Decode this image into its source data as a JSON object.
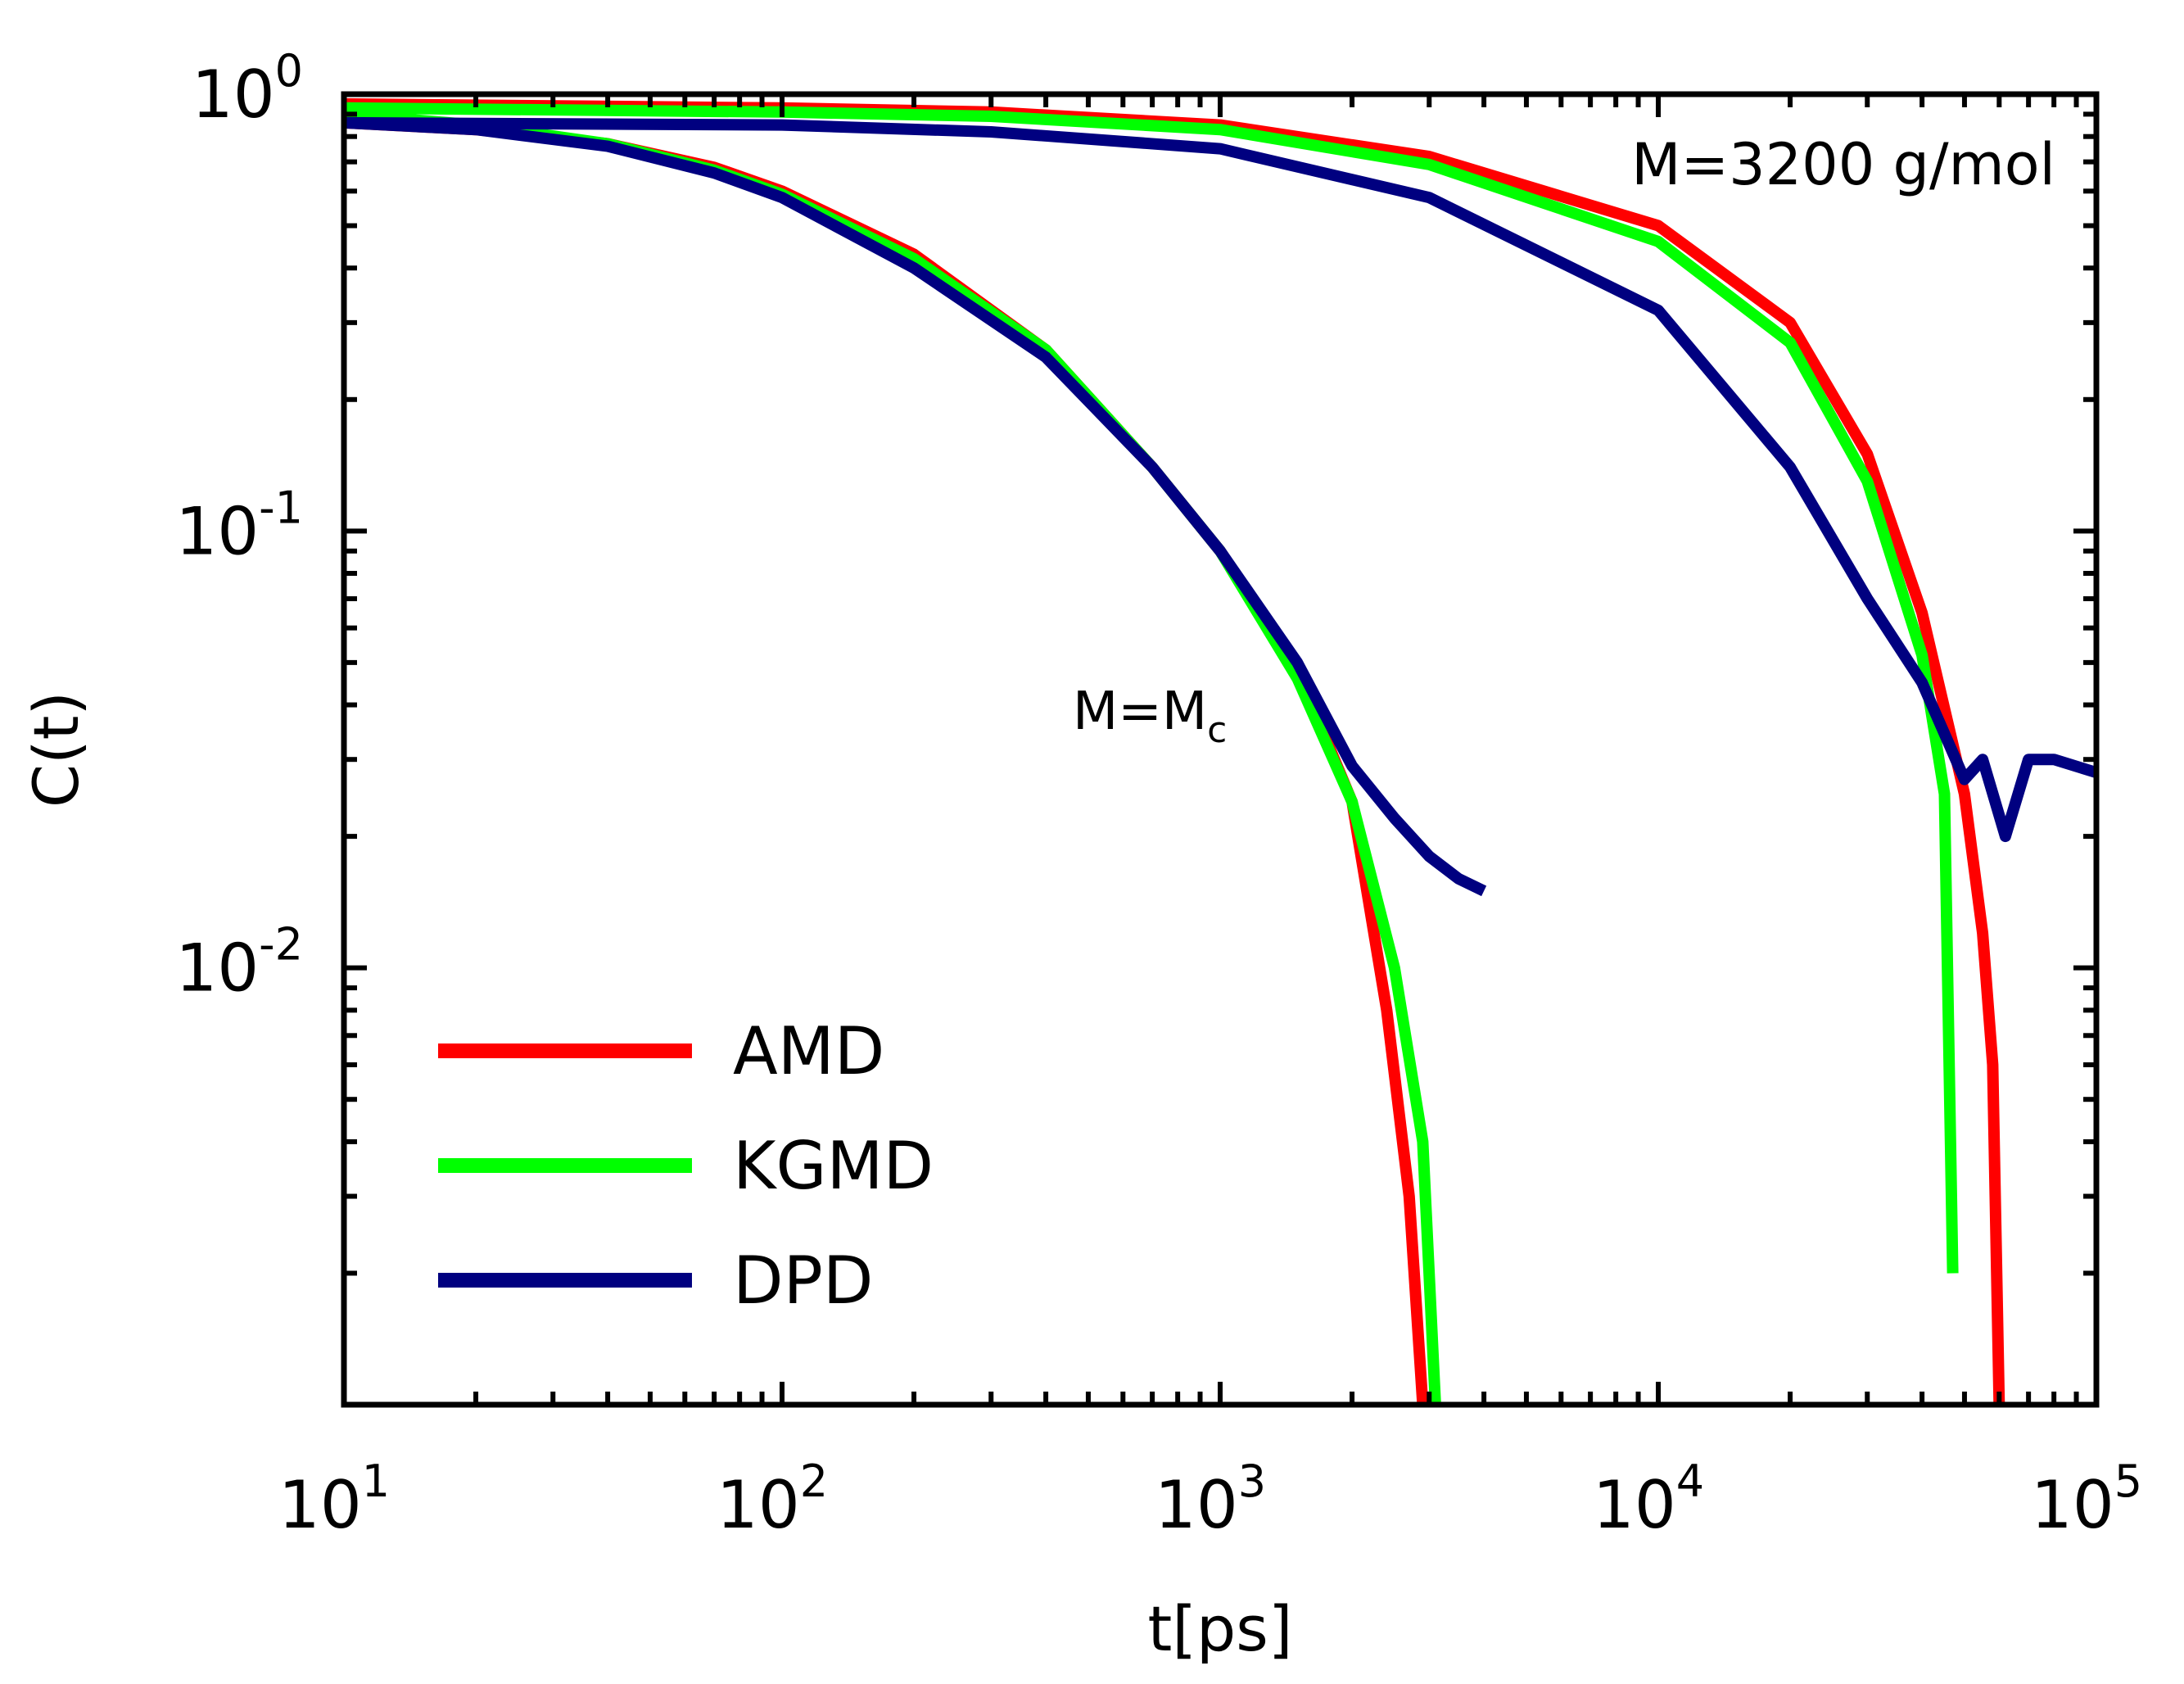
{
  "chart_data": {
    "type": "line",
    "title": "",
    "xlabel": "t[ps]",
    "ylabel": "C(t)",
    "xscale": "log",
    "yscale": "log",
    "xlim": [
      10,
      100000
    ],
    "ylim": [
      0.001,
      1
    ],
    "grid": false,
    "legend_position": "bottom-left",
    "x_ticks": [
      {
        "base": "10",
        "exp": "1"
      },
      {
        "base": "10",
        "exp": "2"
      },
      {
        "base": "10",
        "exp": "3"
      },
      {
        "base": "10",
        "exp": "4"
      },
      {
        "base": "10",
        "exp": "5"
      }
    ],
    "y_ticks": [
      {
        "base": "10",
        "exp": "0"
      },
      {
        "base": "10",
        "exp": "-1"
      },
      {
        "base": "10",
        "exp": "-2"
      }
    ],
    "annotations": {
      "top_right": "M=3200 g/mol",
      "curve_label_main": "M=M",
      "curve_label_sub": "c"
    },
    "colors": {
      "AMD": "#ff0000",
      "KGMD": "#00ff00",
      "DPD": "#000080"
    },
    "series": [
      {
        "name": "AMD",
        "group": "M=Mc",
        "points": [
          [
            10,
            0.86
          ],
          [
            20,
            0.83
          ],
          [
            40,
            0.77
          ],
          [
            70,
            0.68
          ],
          [
            100,
            0.6
          ],
          [
            200,
            0.43
          ],
          [
            400,
            0.26
          ],
          [
            700,
            0.14
          ],
          [
            1000,
            0.09
          ],
          [
            1500,
            0.048
          ],
          [
            2000,
            0.024
          ],
          [
            2400,
            0.008
          ],
          [
            2700,
            0.003
          ],
          [
            2900,
            0.001
          ]
        ]
      },
      {
        "name": "KGMD",
        "group": "M=Mc",
        "points": [
          [
            10,
            0.9
          ],
          [
            20,
            0.85
          ],
          [
            40,
            0.77
          ],
          [
            70,
            0.67
          ],
          [
            100,
            0.59
          ],
          [
            200,
            0.42
          ],
          [
            400,
            0.26
          ],
          [
            700,
            0.14
          ],
          [
            1000,
            0.09
          ],
          [
            1500,
            0.046
          ],
          [
            2000,
            0.024
          ],
          [
            2500,
            0.01
          ],
          [
            2900,
            0.004
          ],
          [
            3100,
            0.001
          ]
        ]
      },
      {
        "name": "DPD",
        "group": "M=Mc",
        "points": [
          [
            10,
            0.86
          ],
          [
            20,
            0.83
          ],
          [
            40,
            0.76
          ],
          [
            70,
            0.66
          ],
          [
            100,
            0.58
          ],
          [
            200,
            0.4
          ],
          [
            400,
            0.25
          ],
          [
            700,
            0.14
          ],
          [
            1000,
            0.09
          ],
          [
            1500,
            0.05
          ],
          [
            2000,
            0.029
          ],
          [
            2500,
            0.022
          ],
          [
            3000,
            0.018
          ],
          [
            3500,
            0.016
          ],
          [
            4000,
            0.015
          ]
        ]
      },
      {
        "name": "AMD",
        "group": "M=3200 g/mol",
        "points": [
          [
            10,
            0.95
          ],
          [
            100,
            0.93
          ],
          [
            300,
            0.91
          ],
          [
            1000,
            0.85
          ],
          [
            3000,
            0.72
          ],
          [
            10000,
            0.5
          ],
          [
            20000,
            0.3
          ],
          [
            30000,
            0.15
          ],
          [
            40000,
            0.065
          ],
          [
            50000,
            0.025
          ],
          [
            55000,
            0.012
          ],
          [
            58000,
            0.006
          ],
          [
            60000,
            0.001
          ]
        ]
      },
      {
        "name": "KGMD",
        "group": "M=3200 g/mol",
        "points": [
          [
            10,
            0.93
          ],
          [
            100,
            0.91
          ],
          [
            300,
            0.89
          ],
          [
            1000,
            0.83
          ],
          [
            3000,
            0.69
          ],
          [
            10000,
            0.46
          ],
          [
            20000,
            0.27
          ],
          [
            30000,
            0.13
          ],
          [
            40000,
            0.052
          ],
          [
            45000,
            0.025
          ],
          [
            47000,
            0.002
          ]
        ]
      },
      {
        "name": "DPD",
        "group": "M=3200 g/mol",
        "points": [
          [
            10,
            0.86
          ],
          [
            100,
            0.85
          ],
          [
            300,
            0.82
          ],
          [
            1000,
            0.75
          ],
          [
            3000,
            0.58
          ],
          [
            10000,
            0.32
          ],
          [
            20000,
            0.14
          ],
          [
            30000,
            0.07
          ],
          [
            40000,
            0.045
          ],
          [
            50000,
            0.027
          ],
          [
            55000,
            0.03
          ],
          [
            62000,
            0.02
          ],
          [
            70000,
            0.03
          ],
          [
            80000,
            0.03
          ],
          [
            100000,
            0.028
          ]
        ]
      }
    ]
  }
}
